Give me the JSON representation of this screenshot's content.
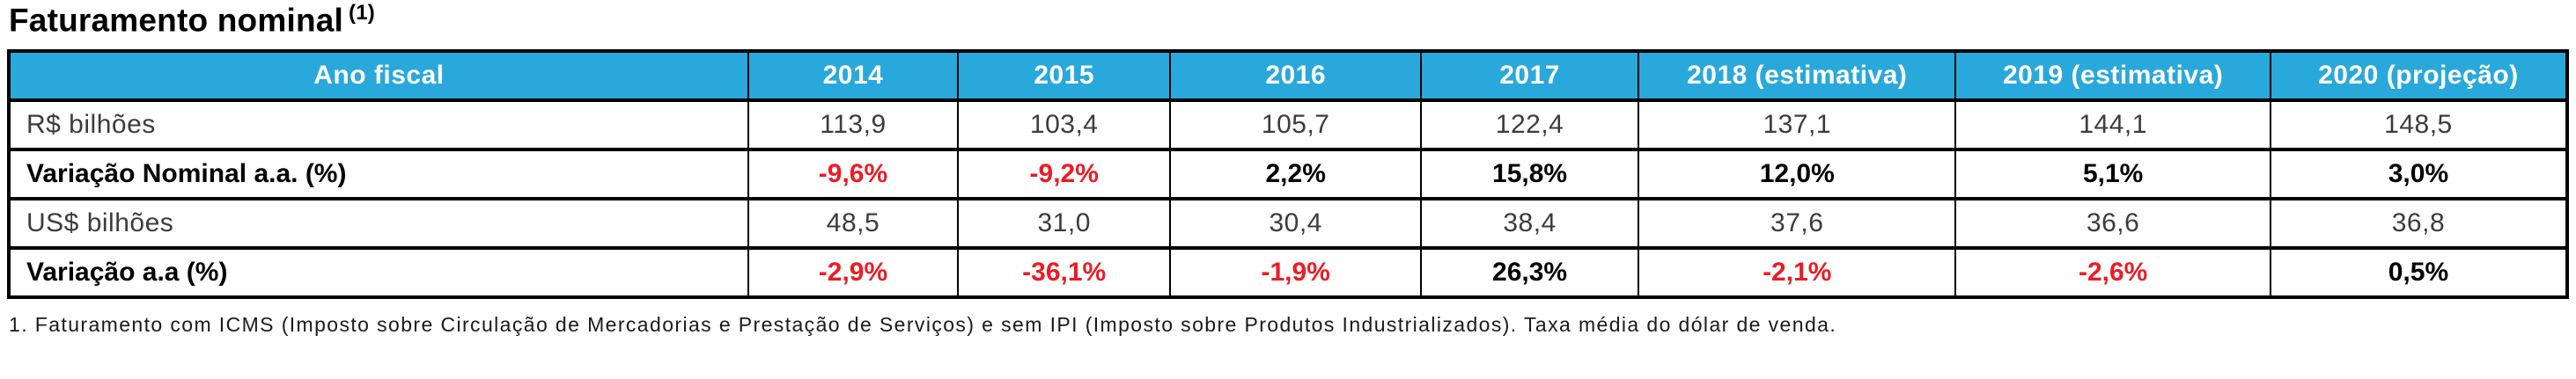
{
  "title": {
    "text": "Faturamento nominal",
    "footnote_ref": "(1)"
  },
  "table": {
    "header": {
      "label": "Ano fiscal",
      "years": [
        "2014",
        "2015",
        "2016",
        "2017",
        "2018 (estimativa)",
        "2019 (estimativa)",
        "2020 (projeção)"
      ]
    },
    "rows": [
      {
        "label": "R$ bilhões",
        "style": "light",
        "values": [
          "113,9",
          "103,4",
          "105,7",
          "122,4",
          "137,1",
          "144,1",
          "148,5"
        ]
      },
      {
        "label": "Variação Nominal a.a. (%)",
        "style": "bold",
        "values": [
          "-9,6%",
          "-9,2%",
          "2,2%",
          "15,8%",
          "12,0%",
          "5,1%",
          "3,0%"
        ]
      },
      {
        "label": "US$ bilhões",
        "style": "light",
        "values": [
          "48,5",
          "31,0",
          "30,4",
          "38,4",
          "37,6",
          "36,6",
          "36,8"
        ]
      },
      {
        "label": "Variação a.a (%)",
        "style": "bold",
        "values": [
          "-2,9%",
          "-36,1%",
          "-1,9%",
          "26,3%",
          "-2,1%",
          "-2,6%",
          "0,5%"
        ]
      }
    ]
  },
  "footnote": "1. Faturamento com ICMS (Imposto sobre Circulação de Mercadorias e Prestação de Serviços) e sem IPI (Imposto sobre Produtos Industrializados). Taxa média do dólar de venda.",
  "colors": {
    "header_bg": "#29A8DC",
    "header_text": "#FFFFFF",
    "negative": "#EC1C24",
    "border": "#000000",
    "light_text": "#3C3C3C"
  }
}
